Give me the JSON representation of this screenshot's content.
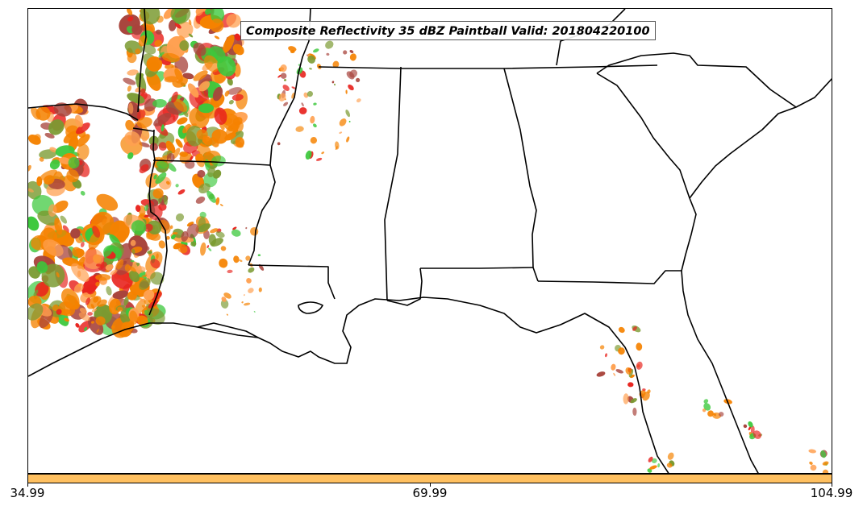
{
  "title": "Composite Reflectivity 35 dBZ Paintball Valid: 201804220100",
  "colorbar": {
    "color": "#ffc060",
    "ticks": [
      "34.99",
      "69.99",
      "104.99"
    ]
  },
  "palette": {
    "orange": "#f58200",
    "red": "#e8231e",
    "dark_red": "#a8443c",
    "olive": "#7a9a30",
    "green": "#3cc83c",
    "light_orange": "#ffa050"
  }
}
